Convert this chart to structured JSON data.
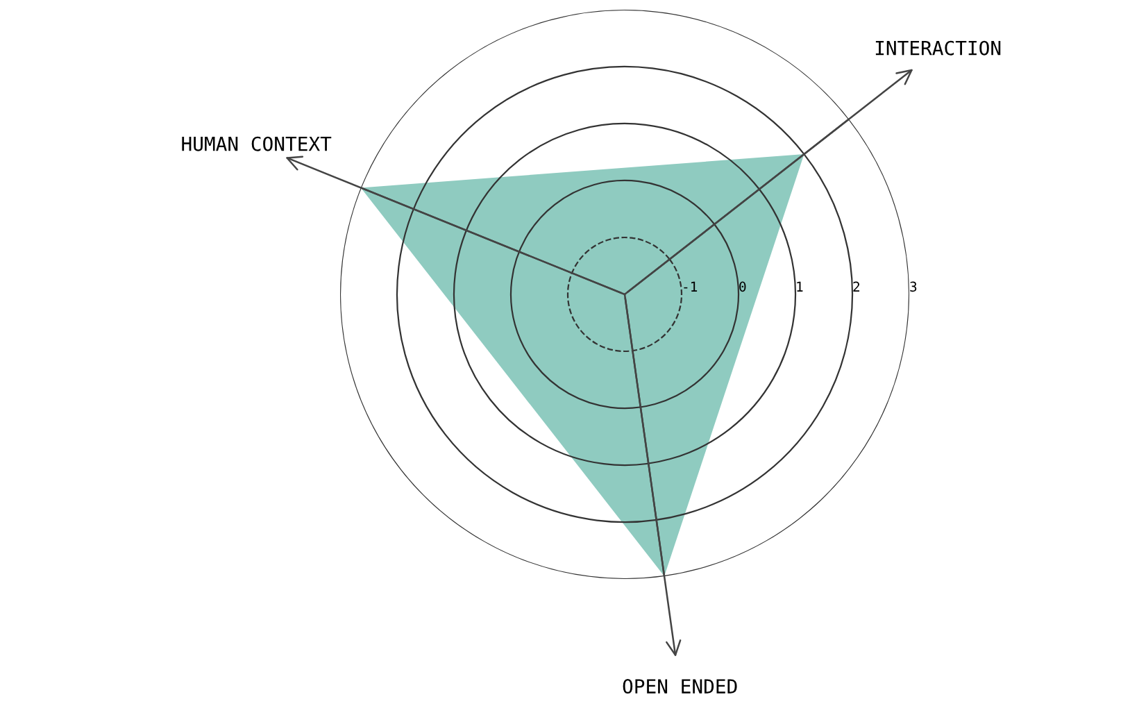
{
  "chart_data": {
    "type": "radar",
    "categories": [
      "INTERACTION",
      "OPEN ENDED",
      "HUMAN CONTEXT"
    ],
    "series": [
      {
        "color": "#8fcbc0",
        "values": [
          2,
          3,
          3
        ]
      }
    ],
    "ylim": [
      -2,
      3
    ],
    "yticks": [
      -1,
      0,
      1,
      2,
      3
    ],
    "grid": true
  }
}
